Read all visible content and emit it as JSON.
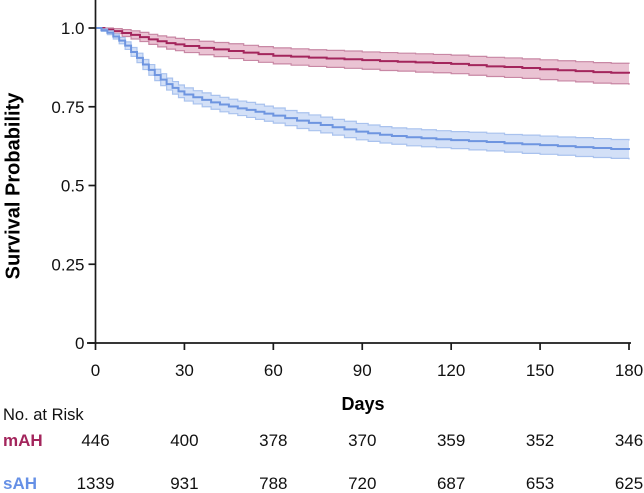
{
  "figure": {
    "background": "#ffffff",
    "axis_color": "#1a1a1a",
    "text_color": "#111111"
  },
  "chart_data": {
    "type": "line",
    "subtype": "kaplan-meier-step-with-confidence-bands",
    "title": "",
    "xlabel": "Days",
    "ylabel": "Survival Probability",
    "xlim": [
      0,
      180
    ],
    "ylim": [
      0,
      1.0
    ],
    "xticks": [
      0,
      30,
      60,
      90,
      120,
      150,
      180
    ],
    "xtick_labels": [
      "0",
      "30",
      "60",
      "90",
      "120",
      "150",
      "180"
    ],
    "yticks": [
      0,
      0.25,
      0.5,
      0.75,
      1.0
    ],
    "ytick_labels": [
      "0",
      "0.25",
      "0.5",
      "0.75",
      "1.0"
    ],
    "grid": false,
    "legend_position": "none (groups labeled in risk table)",
    "series": [
      {
        "name": "mAH",
        "line_color": "#A3255C",
        "band_fill": "#EAC3D3",
        "band_edge": "#C887A4",
        "points_format": [
          "day",
          "survival",
          "ci_lower",
          "ci_upper"
        ],
        "points": [
          [
            0,
            1.0,
            1.0,
            1.0
          ],
          [
            3,
            0.995,
            0.989,
            1.0
          ],
          [
            6,
            0.99,
            0.982,
            0.998
          ],
          [
            9,
            0.984,
            0.973,
            0.995
          ],
          [
            12,
            0.978,
            0.965,
            0.991
          ],
          [
            15,
            0.971,
            0.957,
            0.986
          ],
          [
            18,
            0.964,
            0.948,
            0.98
          ],
          [
            21,
            0.958,
            0.94,
            0.975
          ],
          [
            24,
            0.952,
            0.933,
            0.971
          ],
          [
            27,
            0.948,
            0.928,
            0.967
          ],
          [
            30,
            0.943,
            0.922,
            0.963
          ],
          [
            35,
            0.937,
            0.915,
            0.958
          ],
          [
            40,
            0.932,
            0.909,
            0.954
          ],
          [
            45,
            0.927,
            0.903,
            0.95
          ],
          [
            50,
            0.922,
            0.897,
            0.945
          ],
          [
            55,
            0.917,
            0.891,
            0.941
          ],
          [
            60,
            0.912,
            0.886,
            0.937
          ],
          [
            66,
            0.909,
            0.882,
            0.934
          ],
          [
            72,
            0.906,
            0.878,
            0.931
          ],
          [
            78,
            0.903,
            0.875,
            0.929
          ],
          [
            84,
            0.901,
            0.872,
            0.927
          ],
          [
            90,
            0.898,
            0.869,
            0.924
          ],
          [
            96,
            0.895,
            0.865,
            0.922
          ],
          [
            102,
            0.893,
            0.863,
            0.92
          ],
          [
            108,
            0.891,
            0.86,
            0.918
          ],
          [
            114,
            0.889,
            0.858,
            0.916
          ],
          [
            120,
            0.886,
            0.855,
            0.914
          ],
          [
            126,
            0.882,
            0.85,
            0.91
          ],
          [
            132,
            0.878,
            0.846,
            0.907
          ],
          [
            138,
            0.876,
            0.843,
            0.905
          ],
          [
            144,
            0.873,
            0.84,
            0.902
          ],
          [
            150,
            0.869,
            0.836,
            0.899
          ],
          [
            156,
            0.866,
            0.832,
            0.896
          ],
          [
            162,
            0.863,
            0.829,
            0.893
          ],
          [
            168,
            0.86,
            0.825,
            0.89
          ],
          [
            174,
            0.858,
            0.823,
            0.888
          ],
          [
            180,
            0.855,
            0.82,
            0.886
          ]
        ]
      },
      {
        "name": "sAH",
        "line_color": "#6E95E0",
        "band_fill": "#D3E0F7",
        "band_edge": "#A9C2EE",
        "points_format": [
          "day",
          "survival",
          "ci_lower",
          "ci_upper"
        ],
        "points": [
          [
            0,
            1.0,
            1.0,
            1.0
          ],
          [
            2,
            0.993,
            0.989,
            0.997
          ],
          [
            4,
            0.985,
            0.979,
            0.991
          ],
          [
            6,
            0.973,
            0.965,
            0.981
          ],
          [
            8,
            0.96,
            0.95,
            0.97
          ],
          [
            10,
            0.944,
            0.932,
            0.956
          ],
          [
            12,
            0.924,
            0.91,
            0.938
          ],
          [
            14,
            0.905,
            0.89,
            0.92
          ],
          [
            16,
            0.884,
            0.868,
            0.9
          ],
          [
            18,
            0.867,
            0.85,
            0.884
          ],
          [
            20,
            0.851,
            0.833,
            0.869
          ],
          [
            22,
            0.836,
            0.817,
            0.855
          ],
          [
            24,
            0.822,
            0.803,
            0.841
          ],
          [
            26,
            0.81,
            0.79,
            0.83
          ],
          [
            28,
            0.799,
            0.779,
            0.819
          ],
          [
            30,
            0.789,
            0.768,
            0.81
          ],
          [
            33,
            0.78,
            0.759,
            0.801
          ],
          [
            36,
            0.772,
            0.75,
            0.794
          ],
          [
            39,
            0.764,
            0.742,
            0.786
          ],
          [
            42,
            0.757,
            0.734,
            0.78
          ],
          [
            45,
            0.751,
            0.728,
            0.774
          ],
          [
            48,
            0.745,
            0.722,
            0.768
          ],
          [
            51,
            0.74,
            0.716,
            0.764
          ],
          [
            54,
            0.734,
            0.71,
            0.758
          ],
          [
            57,
            0.728,
            0.704,
            0.752
          ],
          [
            60,
            0.722,
            0.698,
            0.746
          ],
          [
            64,
            0.714,
            0.69,
            0.738
          ],
          [
            68,
            0.706,
            0.681,
            0.731
          ],
          [
            72,
            0.699,
            0.674,
            0.724
          ],
          [
            76,
            0.692,
            0.667,
            0.717
          ],
          [
            80,
            0.685,
            0.66,
            0.71
          ],
          [
            84,
            0.678,
            0.652,
            0.704
          ],
          [
            88,
            0.671,
            0.645,
            0.697
          ],
          [
            92,
            0.666,
            0.64,
            0.692
          ],
          [
            96,
            0.661,
            0.635,
            0.687
          ],
          [
            100,
            0.657,
            0.631,
            0.683
          ],
          [
            105,
            0.653,
            0.626,
            0.68
          ],
          [
            110,
            0.65,
            0.623,
            0.677
          ],
          [
            115,
            0.647,
            0.62,
            0.674
          ],
          [
            120,
            0.644,
            0.617,
            0.671
          ],
          [
            126,
            0.641,
            0.613,
            0.669
          ],
          [
            132,
            0.638,
            0.61,
            0.666
          ],
          [
            138,
            0.634,
            0.606,
            0.662
          ],
          [
            144,
            0.631,
            0.602,
            0.66
          ],
          [
            150,
            0.628,
            0.599,
            0.657
          ],
          [
            156,
            0.625,
            0.596,
            0.654
          ],
          [
            162,
            0.622,
            0.592,
            0.652
          ],
          [
            168,
            0.619,
            0.589,
            0.649
          ],
          [
            174,
            0.616,
            0.586,
            0.646
          ],
          [
            180,
            0.613,
            0.583,
            0.643
          ]
        ]
      }
    ]
  },
  "risk_table": {
    "title": "No. at Risk",
    "columns": [
      0,
      30,
      60,
      90,
      120,
      150,
      180
    ],
    "rows": [
      {
        "label": "mAH",
        "color": "#A3255C",
        "counts": [
          446,
          400,
          378,
          370,
          359,
          352,
          346
        ]
      },
      {
        "label": "sAH",
        "color": "#6690E6",
        "counts": [
          1339,
          931,
          788,
          720,
          687,
          653,
          625
        ]
      }
    ]
  }
}
